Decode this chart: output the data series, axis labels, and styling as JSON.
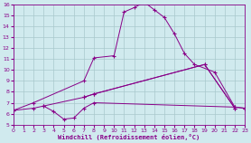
{
  "xlabel": "Windchill (Refroidissement éolien,°C)",
  "xlim": [
    0,
    23
  ],
  "ylim": [
    5,
    16
  ],
  "xticks": [
    0,
    1,
    2,
    3,
    4,
    5,
    6,
    7,
    8,
    9,
    10,
    11,
    12,
    13,
    14,
    15,
    16,
    17,
    18,
    19,
    20,
    21,
    22,
    23
  ],
  "yticks": [
    5,
    6,
    7,
    8,
    9,
    10,
    11,
    12,
    13,
    14,
    15,
    16
  ],
  "bg_color": "#d0eaee",
  "line_color": "#880088",
  "grid_color": "#a8c8cc",
  "line1": {
    "comment": "bottom flat line: x=0 y~6.3, goes through x=2 y~6.5, x=3 y~6.7, x=4 y~6.2, x=5 y~5.5, x=6 y~5.6, x=7 y~6.5, x=8 y~7.0, then nearly flat to x=22 y~6.6, x=23 y~6.5",
    "x": [
      0,
      2,
      3,
      4,
      5,
      6,
      7,
      8,
      22,
      23
    ],
    "y": [
      6.3,
      6.5,
      6.7,
      6.2,
      5.5,
      5.6,
      6.5,
      7.0,
      6.6,
      6.5
    ]
  },
  "line2": {
    "x": [
      3,
      7,
      8,
      19,
      22
    ],
    "y": [
      6.7,
      7.5,
      7.8,
      10.5,
      6.5
    ]
  },
  "line3": {
    "comment": "third line from x=7 y~7.5 rising to x=19 y~10.5 endpoint x=22 y~6.5",
    "x": [
      7,
      8,
      19,
      22
    ],
    "y": [
      7.5,
      7.8,
      10.5,
      6.5
    ]
  },
  "line4": {
    "x": [
      0,
      2,
      7,
      8,
      10,
      11,
      12,
      13,
      14,
      15,
      16,
      17,
      18,
      20,
      22,
      23
    ],
    "y": [
      6.3,
      7.0,
      9.0,
      11.1,
      11.3,
      15.3,
      15.7,
      16.2,
      15.5,
      14.8,
      13.3,
      11.5,
      10.5,
      9.8,
      6.6,
      6.5
    ]
  }
}
